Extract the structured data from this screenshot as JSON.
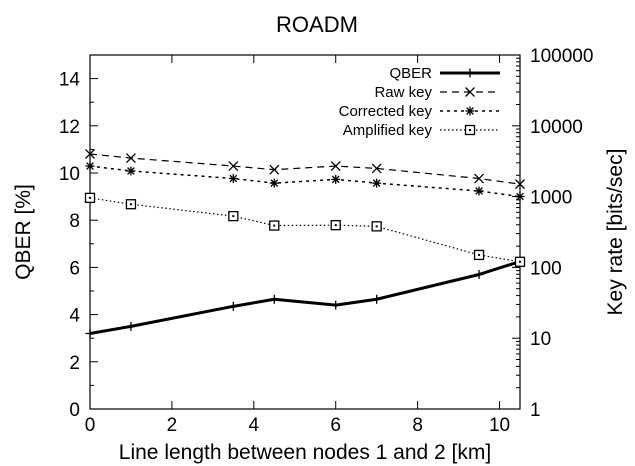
{
  "chart_data": {
    "type": "line",
    "title": "ROADM",
    "xlabel": "Line length between nodes 1 and 2 [km]",
    "ylabel": "QBER [%]",
    "y2label": "Key rate [bits/sec]",
    "xlim": [
      0,
      10.5
    ],
    "ylim": [
      0,
      15
    ],
    "y2lim": [
      1,
      100000
    ],
    "y2scale": "log",
    "xticks": [
      "0",
      "2",
      "4",
      "6",
      "8",
      "10"
    ],
    "yticks": [
      "0",
      "2",
      "4",
      "6",
      "8",
      "10",
      "12",
      "14"
    ],
    "y2ticks": [
      "1",
      "10",
      "100",
      "1000",
      "10000",
      "100000"
    ],
    "legend_position": "top-right",
    "series": [
      {
        "name": "QBER",
        "axis": "left",
        "style": "solid",
        "marker": "plus",
        "x": [
          0,
          1,
          3.5,
          4.5,
          6,
          7,
          9.5,
          10.5
        ],
        "y": [
          3.2,
          3.5,
          4.35,
          4.65,
          4.4,
          4.65,
          5.7,
          6.25
        ]
      },
      {
        "name": "Raw key",
        "axis": "right",
        "style": "dashed",
        "marker": "x",
        "x": [
          0,
          1,
          3.5,
          4.5,
          6,
          7,
          9.5,
          10.5
        ],
        "y": [
          4000,
          3500,
          2700,
          2400,
          2700,
          2500,
          1800,
          1500
        ]
      },
      {
        "name": "Corrected key",
        "axis": "right",
        "style": "dotted",
        "marker": "asterisk",
        "x": [
          0,
          1,
          3.5,
          4.5,
          6,
          7,
          9.5,
          10.5
        ],
        "y": [
          2700,
          2300,
          1800,
          1550,
          1750,
          1550,
          1200,
          1000
        ]
      },
      {
        "name": "Amplified key",
        "axis": "right",
        "style": "fine-dotted",
        "marker": "square",
        "x": [
          0,
          1,
          3.5,
          4.5,
          6,
          7,
          9.5,
          10.5
        ],
        "y": [
          960,
          780,
          530,
          390,
          395,
          380,
          150,
          120
        ]
      }
    ]
  }
}
